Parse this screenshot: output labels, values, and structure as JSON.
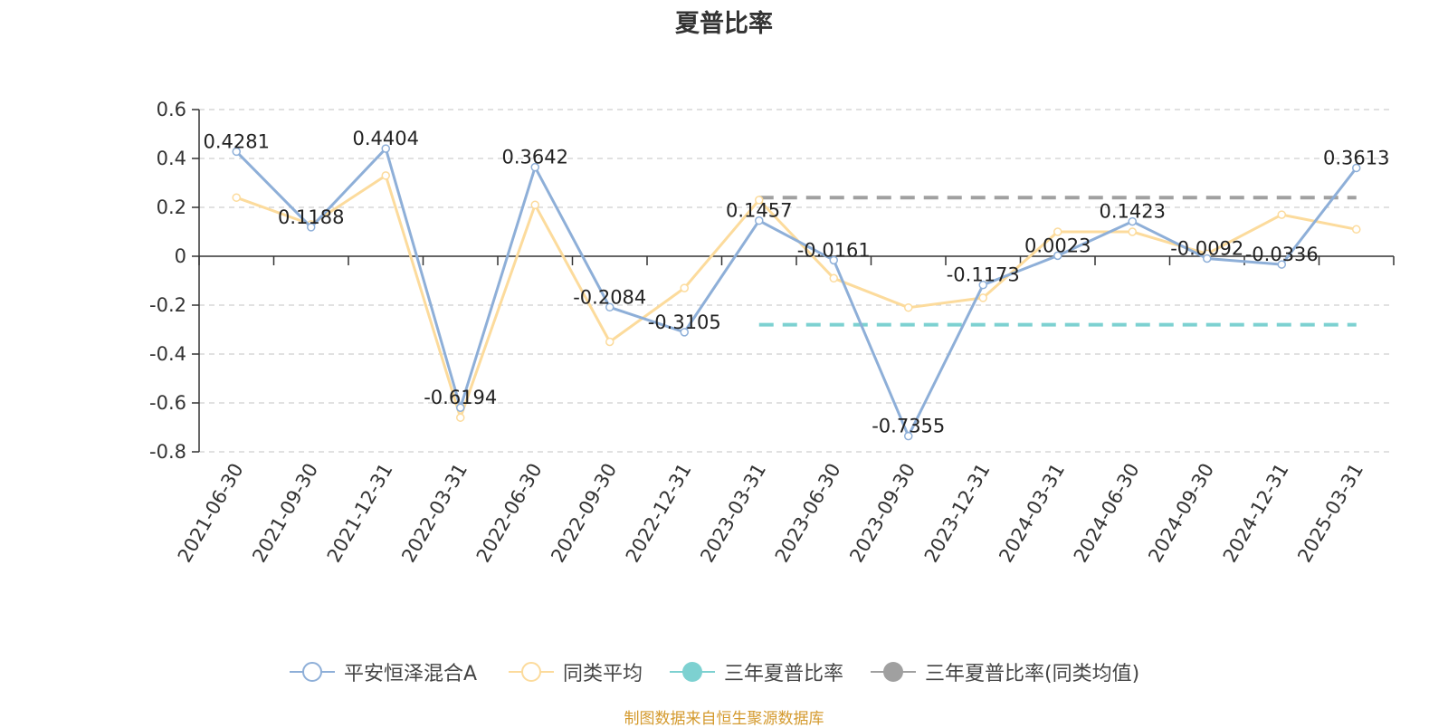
{
  "chart_data": {
    "type": "line",
    "title": "夏普比率",
    "categories": [
      "2021-06-30",
      "2021-09-30",
      "2021-12-31",
      "2022-03-31",
      "2022-06-30",
      "2022-09-30",
      "2022-12-31",
      "2023-03-31",
      "2023-06-30",
      "2023-09-30",
      "2023-12-31",
      "2024-03-31",
      "2024-06-30",
      "2024-09-30",
      "2024-12-31",
      "2025-03-31"
    ],
    "ylim": [
      -0.8,
      0.6
    ],
    "yticks": [
      0.6,
      0.4,
      0.2,
      0,
      -0.2,
      -0.4,
      -0.6,
      -0.8
    ],
    "ytick_labels": [
      "0.6",
      "0.4",
      "0.2",
      "0",
      "-0.2",
      "-0.4",
      "-0.6",
      "-0.8"
    ],
    "grid": true,
    "legend_position": "bottom",
    "series": [
      {
        "name": "平安恒泽混合A",
        "color": "#8eafd8",
        "values": [
          0.4281,
          0.1188,
          0.4404,
          -0.6194,
          0.3642,
          -0.2084,
          -0.3105,
          0.1457,
          -0.0161,
          -0.7355,
          -0.1173,
          0.0023,
          0.1423,
          -0.0092,
          -0.0336,
          0.3613
        ],
        "labels": [
          "0.4281",
          "0.1188",
          "0.4404",
          "-0.6194",
          "0.3642",
          "-0.2084",
          "-0.3105",
          "0.1457",
          "-0.0161",
          "-0.7355",
          "-0.1173",
          "0.0023",
          "0.1423",
          "-0.0092",
          "-0.0336",
          "0.3613"
        ]
      },
      {
        "name": "同类平均",
        "color": "#fcdb9c",
        "values": [
          0.24,
          0.13,
          0.33,
          -0.66,
          0.21,
          -0.35,
          -0.13,
          0.23,
          -0.09,
          -0.21,
          -0.17,
          0.1,
          0.1,
          0.01,
          0.17,
          0.11
        ]
      },
      {
        "name": "三年夏普比率",
        "color": "#7dd1d1",
        "style": "dashed",
        "from": "2023-03-31",
        "to": "2025-03-31",
        "value": -0.28
      },
      {
        "name": "三年夏普比率(同类均值)",
        "color": "#a0a0a0",
        "style": "dashed",
        "from": "2023-03-31",
        "to": "2025-03-31",
        "value": 0.24
      }
    ]
  },
  "legend": {
    "items": [
      {
        "label": "平安恒泽混合A",
        "color": "#8eafd8",
        "marker": "hollow"
      },
      {
        "label": "同类平均",
        "color": "#fcdb9c",
        "marker": "hollow"
      },
      {
        "label": "三年夏普比率",
        "color": "#7dd1d1",
        "marker": "filled"
      },
      {
        "label": "三年夏普比率(同类均值)",
        "color": "#a0a0a0",
        "marker": "filled"
      }
    ]
  },
  "source": "制图数据来自恒生聚源数据库"
}
